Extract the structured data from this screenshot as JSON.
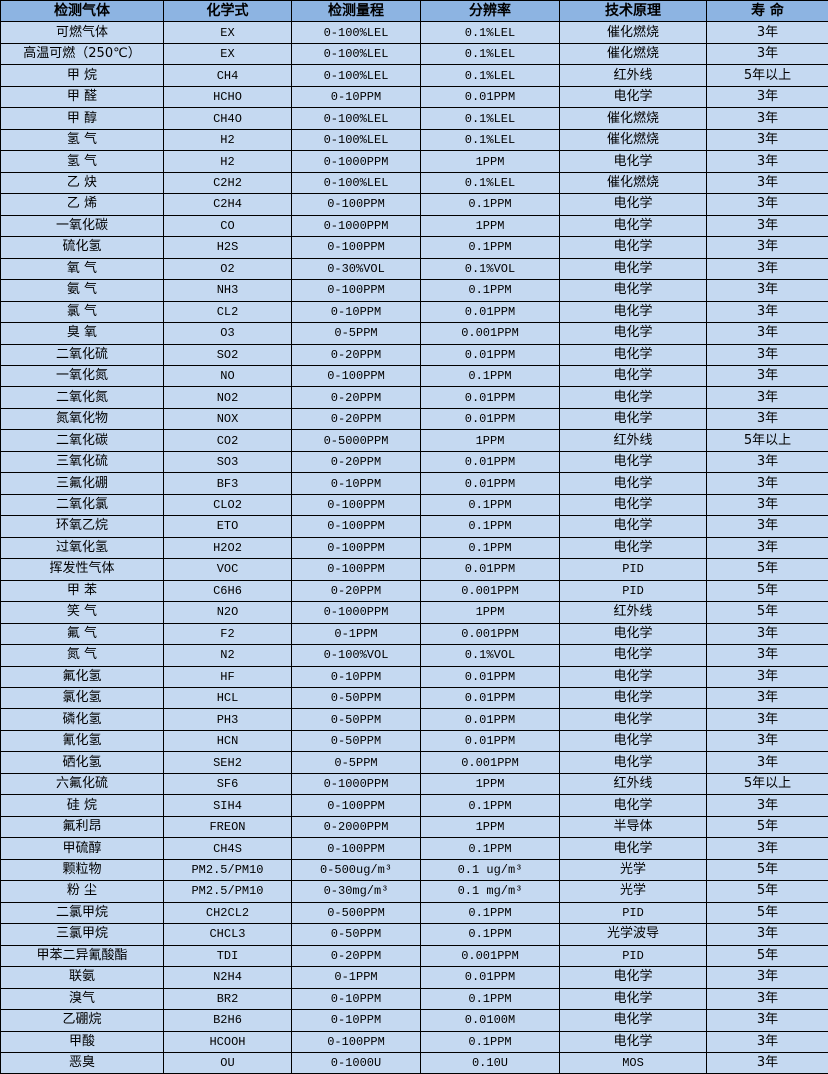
{
  "colors": {
    "header_bg": "#8db4e2",
    "row_bg": "#c5d9f1",
    "border": "#000000"
  },
  "table": {
    "headers": [
      "检测气体",
      "化学式",
      "检测量程",
      "分辨率",
      "技术原理",
      "寿 命"
    ],
    "rows": [
      [
        "可燃气体",
        "EX",
        "0-100%LEL",
        "0.1%LEL",
        "催化燃烧",
        "3年"
      ],
      [
        "高温可燃（250℃）",
        "EX",
        "0-100%LEL",
        "0.1%LEL",
        "催化燃烧",
        "3年"
      ],
      [
        "甲 烷",
        "CH4",
        "0-100%LEL",
        "0.1%LEL",
        "红外线",
        "5年以上"
      ],
      [
        "甲 醛",
        "HCHO",
        "0-10PPM",
        "0.01PPM",
        "电化学",
        "3年"
      ],
      [
        "甲 醇",
        "CH4O",
        "0-100%LEL",
        "0.1%LEL",
        "催化燃烧",
        "3年"
      ],
      [
        "氢 气",
        "H2",
        "0-100%LEL",
        "0.1%LEL",
        "催化燃烧",
        "3年"
      ],
      [
        "氢 气",
        "H2",
        "0-1000PPM",
        "1PPM",
        "电化学",
        "3年"
      ],
      [
        "乙 炔",
        "C2H2",
        "0-100%LEL",
        "0.1%LEL",
        "催化燃烧",
        "3年"
      ],
      [
        "乙 烯",
        "C2H4",
        "0-100PPM",
        "0.1PPM",
        "电化学",
        "3年"
      ],
      [
        "一氧化碳",
        "CO",
        "0-1000PPM",
        "1PPM",
        "电化学",
        "3年"
      ],
      [
        "硫化氢",
        "H2S",
        "0-100PPM",
        "0.1PPM",
        "电化学",
        "3年"
      ],
      [
        "氧 气",
        "O2",
        "0-30%VOL",
        "0.1%VOL",
        "电化学",
        "3年"
      ],
      [
        "氨 气",
        "NH3",
        "0-100PPM",
        "0.1PPM",
        "电化学",
        "3年"
      ],
      [
        "氯 气",
        "CL2",
        "0-10PPM",
        "0.01PPM",
        "电化学",
        "3年"
      ],
      [
        "臭 氧",
        "O3",
        "0-5PPM",
        "0.001PPM",
        "电化学",
        "3年"
      ],
      [
        "二氧化硫",
        "SO2",
        "0-20PPM",
        "0.01PPM",
        "电化学",
        "3年"
      ],
      [
        "一氧化氮",
        "NO",
        "0-100PPM",
        "0.1PPM",
        "电化学",
        "3年"
      ],
      [
        "二氧化氮",
        "NO2",
        "0-20PPM",
        "0.01PPM",
        "电化学",
        "3年"
      ],
      [
        "氮氧化物",
        "NOX",
        "0-20PPM",
        "0.01PPM",
        "电化学",
        "3年"
      ],
      [
        "二氧化碳",
        "CO2",
        "0-5000PPM",
        "1PPM",
        "红外线",
        "5年以上"
      ],
      [
        "三氧化硫",
        "SO3",
        "0-20PPM",
        "0.01PPM",
        "电化学",
        "3年"
      ],
      [
        "三氟化硼",
        "BF3",
        "0-10PPM",
        "0.01PPM",
        "电化学",
        "3年"
      ],
      [
        "二氧化氯",
        "CLO2",
        "0-100PPM",
        "0.1PPM",
        "电化学",
        "3年"
      ],
      [
        "环氧乙烷",
        "ETO",
        "0-100PPM",
        "0.1PPM",
        "电化学",
        "3年"
      ],
      [
        "过氧化氢",
        "H2O2",
        "0-100PPM",
        "0.1PPM",
        "电化学",
        "3年"
      ],
      [
        "挥发性气体",
        "VOC",
        "0-100PPM",
        "0.01PPM",
        "PID",
        "5年"
      ],
      [
        "甲 苯",
        "C6H6",
        "0-20PPM",
        "0.001PPM",
        "PID",
        "5年"
      ],
      [
        "笑 气",
        "N2O",
        "0-1000PPM",
        "1PPM",
        "红外线",
        "5年"
      ],
      [
        "氟 气",
        "F2",
        "0-1PPM",
        "0.001PPM",
        "电化学",
        "3年"
      ],
      [
        "氮 气",
        "N2",
        "0-100%VOL",
        "0.1%VOL",
        "电化学",
        "3年"
      ],
      [
        "氟化氢",
        "HF",
        "0-10PPM",
        "0.01PPM",
        "电化学",
        "3年"
      ],
      [
        "氯化氢",
        "HCL",
        "0-50PPM",
        "0.01PPM",
        "电化学",
        "3年"
      ],
      [
        "磷化氢",
        "PH3",
        "0-50PPM",
        "0.01PPM",
        "电化学",
        "3年"
      ],
      [
        "氰化氢",
        "HCN",
        "0-50PPM",
        "0.01PPM",
        "电化学",
        "3年"
      ],
      [
        "硒化氢",
        "SEH2",
        "0-5PPM",
        "0.001PPM",
        "电化学",
        "3年"
      ],
      [
        "六氟化硫",
        "SF6",
        "0-1000PPM",
        "1PPM",
        "红外线",
        "5年以上"
      ],
      [
        "硅 烷",
        "SIH4",
        "0-100PPM",
        "0.1PPM",
        "电化学",
        "3年"
      ],
      [
        "氟利昂",
        "FREON",
        "0-2000PPM",
        "1PPM",
        "半导体",
        "5年"
      ],
      [
        "甲硫醇",
        "CH4S",
        "0-100PPM",
        "0.1PPM",
        "电化学",
        "3年"
      ],
      [
        "颗粒物",
        "PM2.5/PM10",
        "0-500ug/m³",
        "0.1 ug/m³",
        "光学",
        "5年"
      ],
      [
        "粉 尘",
        "PM2.5/PM10",
        "0-30mg/m³",
        "0.1 mg/m³",
        "光学",
        "5年"
      ],
      [
        "二氯甲烷",
        "CH2CL2",
        "0-500PPM",
        "0.1PPM",
        "PID",
        "5年"
      ],
      [
        "三氯甲烷",
        "CHCL3",
        "0-50PPM",
        "0.1PPM",
        "光学波导",
        "3年"
      ],
      [
        "甲苯二异氰酸酯",
        "TDI",
        "0-20PPM",
        "0.001PPM",
        "PID",
        "5年"
      ],
      [
        "联氨",
        "N2H4",
        "0-1PPM",
        "0.01PPM",
        "电化学",
        "3年"
      ],
      [
        "溴气",
        "BR2",
        "0-10PPM",
        "0.1PPM",
        "电化学",
        "3年"
      ],
      [
        "乙硼烷",
        "B2H6",
        "0-10PPM",
        "0.0100M",
        "电化学",
        "3年"
      ],
      [
        "甲酸",
        "HCOOH",
        "0-100PPM",
        "0.1PPM",
        "电化学",
        "3年"
      ],
      [
        "恶臭",
        "OU",
        "0-1000U",
        "0.10U",
        "MOS",
        "3年"
      ]
    ]
  }
}
